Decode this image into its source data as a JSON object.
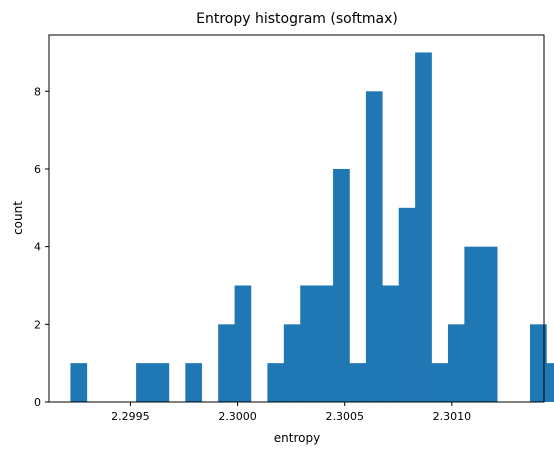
{
  "chart_data": {
    "type": "bar",
    "title": "Entropy histogram (softmax)",
    "xlabel": "entropy",
    "ylabel": "count",
    "bin_start": 2.29922,
    "bin_width": 7.66e-05,
    "counts": [
      1,
      0,
      0,
      0,
      1,
      1,
      0,
      1,
      0,
      2,
      3,
      0,
      1,
      2,
      3,
      3,
      6,
      1,
      8,
      3,
      5,
      9,
      1,
      2,
      4,
      4,
      0,
      0,
      2,
      1
    ],
    "xlim": [
      2.29912,
      2.30143
    ],
    "ylim": [
      0,
      9.45
    ],
    "x_ticks": [
      {
        "value": 2.2995,
        "label": "2.2995"
      },
      {
        "value": 2.3,
        "label": "2.3000"
      },
      {
        "value": 2.3005,
        "label": "2.3005"
      },
      {
        "value": 2.301,
        "label": "2.3010"
      }
    ],
    "y_ticks": [
      {
        "value": 0,
        "label": "0"
      },
      {
        "value": 2,
        "label": "2"
      },
      {
        "value": 4,
        "label": "4"
      },
      {
        "value": 6,
        "label": "6"
      },
      {
        "value": 8,
        "label": "8"
      }
    ],
    "bar_color": "#1f77b4",
    "grid": false,
    "legend": "none"
  }
}
